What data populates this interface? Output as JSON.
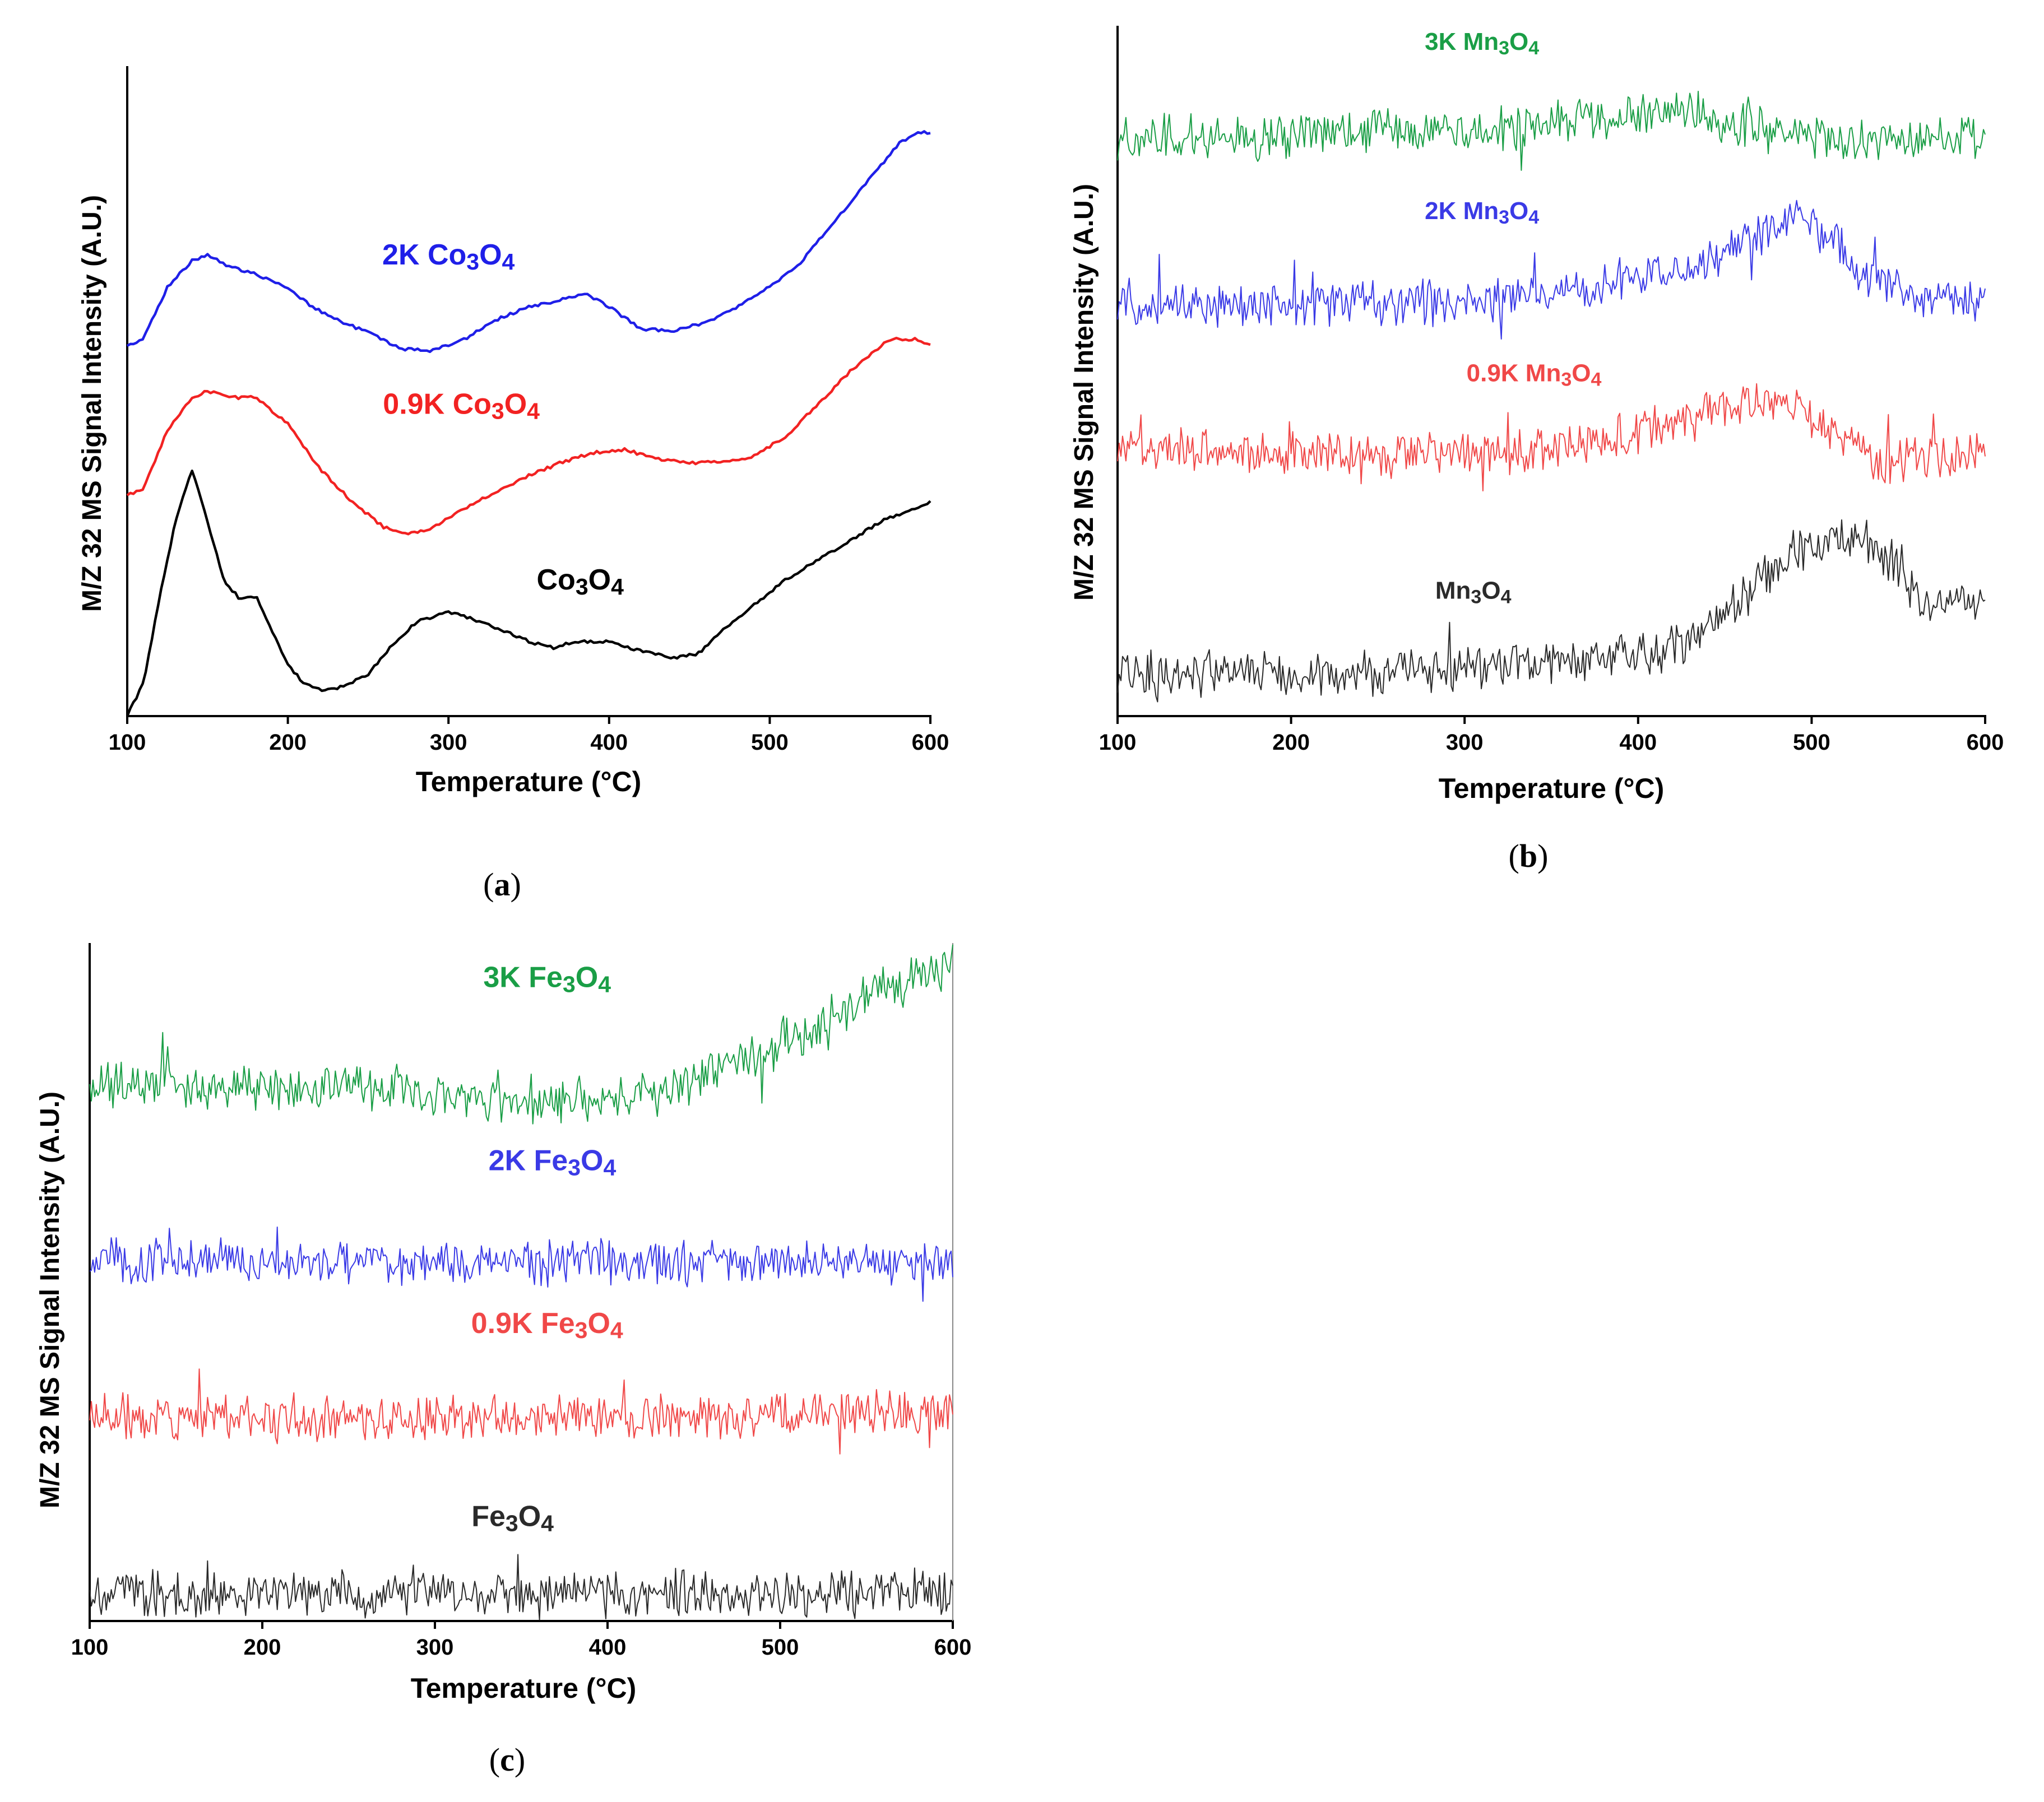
{
  "figure": {
    "panels": [
      {
        "id": "a",
        "caption_open": "(",
        "caption_letter": "a",
        "caption_close": ")"
      },
      {
        "id": "b",
        "caption_open": "(",
        "caption_letter": "b",
        "caption_close": ")"
      },
      {
        "id": "c",
        "caption_open": "(",
        "caption_letter": "c",
        "caption_close": ")"
      }
    ]
  },
  "chart_data": [
    {
      "panel": "a",
      "type": "line",
      "xlabel": "Temperature (°C)",
      "ylabel": "M/Z 32 MS Signal Intensity (A.U.)",
      "xlim": [
        100,
        600
      ],
      "ylim": [
        0,
        100
      ],
      "x_ticks": [
        "100",
        "200",
        "300",
        "400",
        "500",
        "600"
      ],
      "noise": 0,
      "series": [
        {
          "name": "2K Co3O4",
          "label_main": "2K Co",
          "sub1": "3",
          "label_mid": "O",
          "sub2": "4",
          "color": "#1f1fe8",
          "label_x": 300,
          "label_y": 69.5,
          "points": [
            [
              100,
              57
            ],
            [
              110,
              58
            ],
            [
              125,
              66
            ],
            [
              140,
              70
            ],
            [
              150,
              71
            ],
            [
              165,
              69
            ],
            [
              180,
              68
            ],
            [
              200,
              66
            ],
            [
              215,
              63
            ],
            [
              230,
              61
            ],
            [
              250,
              59
            ],
            [
              270,
              56.5
            ],
            [
              290,
              56.2
            ],
            [
              310,
              58
            ],
            [
              330,
              61
            ],
            [
              350,
              63
            ],
            [
              370,
              64
            ],
            [
              385,
              65
            ],
            [
              400,
              63
            ],
            [
              420,
              59.5
            ],
            [
              440,
              59.3
            ],
            [
              460,
              60.5
            ],
            [
              480,
              63
            ],
            [
              500,
              66
            ],
            [
              520,
              70
            ],
            [
              540,
              76
            ],
            [
              560,
              82
            ],
            [
              580,
              88
            ],
            [
              595,
              90
            ],
            [
              600,
              89.5
            ]
          ]
        },
        {
          "name": "0.9K Co3O4",
          "label_main": "0.9K Co",
          "sub1": "3",
          "label_mid": "O",
          "sub2": "4",
          "color": "#f22222",
          "label_x": 308,
          "label_y": 46.5,
          "points": [
            [
              100,
              34
            ],
            [
              110,
              35
            ],
            [
              125,
              44
            ],
            [
              140,
              49
            ],
            [
              150,
              50
            ],
            [
              165,
              49
            ],
            [
              180,
              49
            ],
            [
              200,
              45
            ],
            [
              220,
              38
            ],
            [
              240,
              33
            ],
            [
              260,
              29
            ],
            [
              275,
              28
            ],
            [
              290,
              29
            ],
            [
              310,
              32
            ],
            [
              330,
              34.5
            ],
            [
              350,
              37
            ],
            [
              370,
              39
            ],
            [
              390,
              40.5
            ],
            [
              410,
              41
            ],
            [
              430,
              39.5
            ],
            [
              450,
              39
            ],
            [
              470,
              39
            ],
            [
              490,
              40
            ],
            [
              510,
              43
            ],
            [
              530,
              48
            ],
            [
              550,
              53
            ],
            [
              575,
              58
            ],
            [
              590,
              58
            ],
            [
              600,
              57
            ]
          ]
        },
        {
          "name": "Co3O4",
          "label_main": "Co",
          "sub1": "3",
          "label_mid": "O",
          "sub2": "4",
          "color": "#000000",
          "label_x": 382,
          "label_y": 19.5,
          "points": [
            [
              100,
              0
            ],
            [
              110,
              5
            ],
            [
              120,
              18
            ],
            [
              130,
              30
            ],
            [
              140,
              38
            ],
            [
              150,
              30
            ],
            [
              160,
              21
            ],
            [
              170,
              18
            ],
            [
              180,
              18.5
            ],
            [
              190,
              13
            ],
            [
              200,
              8
            ],
            [
              210,
              5
            ],
            [
              220,
              4
            ],
            [
              235,
              4.5
            ],
            [
              250,
              6.5
            ],
            [
              265,
              11
            ],
            [
              280,
              14.5
            ],
            [
              300,
              16
            ],
            [
              315,
              15
            ],
            [
              330,
              13.5
            ],
            [
              350,
              11.5
            ],
            [
              365,
              10.5
            ],
            [
              380,
              11.5
            ],
            [
              400,
              11.5
            ],
            [
              420,
              10
            ],
            [
              440,
              9
            ],
            [
              455,
              9.5
            ],
            [
              470,
              13
            ],
            [
              490,
              17
            ],
            [
              510,
              21
            ],
            [
              530,
              24
            ],
            [
              550,
              27
            ],
            [
              570,
              30
            ],
            [
              590,
              32
            ],
            [
              600,
              33
            ]
          ]
        }
      ]
    },
    {
      "panel": "b",
      "type": "line",
      "xlabel": "Temperature (°C)",
      "ylabel": "M/Z 32 MS Signal Intensity (A.U.)",
      "xlim": [
        100,
        600
      ],
      "ylim": [
        0,
        100
      ],
      "x_ticks": [
        "100",
        "200",
        "300",
        "400",
        "500",
        "600"
      ],
      "noise": 2.5,
      "series": [
        {
          "name": "3K Mn3O4",
          "label_main": "3K Mn",
          "sub1": "3",
          "label_mid": "O",
          "sub2": "4",
          "color": "#1a9e46",
          "label_x": 310,
          "label_y": 96.5,
          "points": [
            [
              100,
              84
            ],
            [
              200,
              84
            ],
            [
              300,
              85
            ],
            [
              350,
              86
            ],
            [
              400,
              87
            ],
            [
              430,
              87.5
            ],
            [
              460,
              85.5
            ],
            [
              500,
              84
            ],
            [
              550,
              83
            ],
            [
              600,
              84
            ]
          ]
        },
        {
          "name": "2K Mn3O4",
          "label_main": "2K Mn",
          "sub1": "3",
          "label_mid": "O",
          "sub2": "4",
          "color": "#3a3ae6",
          "label_x": 310,
          "label_y": 72,
          "points": [
            [
              100,
              60
            ],
            [
              200,
              59.5
            ],
            [
              300,
              60
            ],
            [
              350,
              61
            ],
            [
              400,
              63.5
            ],
            [
              450,
              67
            ],
            [
              470,
              70
            ],
            [
              490,
              72
            ],
            [
              510,
              69
            ],
            [
              530,
              64
            ],
            [
              560,
              61
            ],
            [
              600,
              60
            ]
          ]
        },
        {
          "name": "0.9K Mn3O4",
          "label_main": "0.9K Mn",
          "sub1": "3",
          "label_mid": "O",
          "sub2": "4",
          "color": "#f04848",
          "label_x": 340,
          "label_y": 48.5,
          "points": [
            [
              100,
              38.5
            ],
            [
              200,
              38
            ],
            [
              300,
              38
            ],
            [
              350,
              39
            ],
            [
              400,
              41
            ],
            [
              450,
              45
            ],
            [
              475,
              46
            ],
            [
              500,
              43
            ],
            [
              520,
              40
            ],
            [
              540,
              36
            ],
            [
              560,
              37
            ],
            [
              600,
              39
            ]
          ]
        },
        {
          "name": "Mn3O4",
          "label_main": "Mn",
          "sub1": "3",
          "label_mid": "O",
          "sub2": "4",
          "color": "#2a2a2a",
          "label_x": 305,
          "label_y": 17,
          "points": [
            [
              100,
              6.5
            ],
            [
              200,
              6
            ],
            [
              300,
              7
            ],
            [
              400,
              8.5
            ],
            [
              430,
              11
            ],
            [
              460,
              17
            ],
            [
              490,
              24
            ],
            [
              510,
              25
            ],
            [
              530,
              26
            ],
            [
              545,
              22
            ],
            [
              560,
              17
            ],
            [
              600,
              16.5
            ]
          ]
        }
      ]
    },
    {
      "panel": "c",
      "type": "line",
      "xlabel": "Temperature (°C)",
      "ylabel": "M/Z 32 MS Signal Intensity (A.U.)",
      "xlim": [
        100,
        600
      ],
      "ylim": [
        0,
        100
      ],
      "x_ticks": [
        "100",
        "200",
        "300",
        "400",
        "500",
        "600"
      ],
      "noise": 2.6,
      "series": [
        {
          "name": "3K Fe3O4",
          "label_main": "3K Fe",
          "sub1": "3",
          "label_mid": "O",
          "sub2": "4",
          "color": "#1a9e46",
          "label_x": 365,
          "label_y": 93.5,
          "points": [
            [
              100,
              79
            ],
            [
              200,
              79
            ],
            [
              280,
              78.5
            ],
            [
              350,
              76.5
            ],
            [
              400,
              77
            ],
            [
              430,
              78
            ],
            [
              460,
              81
            ],
            [
              490,
              84
            ],
            [
              520,
              88
            ],
            [
              550,
              92
            ],
            [
              580,
              95
            ],
            [
              600,
              96
            ]
          ]
        },
        {
          "name": "2K Fe3O4",
          "label_main": "2K Fe",
          "sub1": "3",
          "label_mid": "O",
          "sub2": "4",
          "color": "#3a3ae6",
          "label_x": 368,
          "label_y": 66.5,
          "points": [
            [
              100,
              53
            ],
            [
              200,
              53
            ],
            [
              300,
              53
            ],
            [
              400,
              53
            ],
            [
              500,
              53
            ],
            [
              600,
              53
            ]
          ]
        },
        {
          "name": "0.9K Fe3O4",
          "label_main": "0.9K Fe",
          "sub1": "3",
          "label_mid": "O",
          "sub2": "4",
          "color": "#f04848",
          "label_x": 365,
          "label_y": 42.5,
          "points": [
            [
              100,
              30
            ],
            [
              200,
              30
            ],
            [
              300,
              30
            ],
            [
              400,
              30
            ],
            [
              500,
              30.5
            ],
            [
              600,
              31
            ]
          ]
        },
        {
          "name": "Fe3O4",
          "label_main": "Fe",
          "sub1": "3",
          "label_mid": "O",
          "sub2": "4",
          "color": "#2a2a2a",
          "label_x": 345,
          "label_y": 14,
          "points": [
            [
              100,
              4
            ],
            [
              200,
              4
            ],
            [
              300,
              4
            ],
            [
              400,
              4
            ],
            [
              500,
              4
            ],
            [
              600,
              4
            ]
          ]
        }
      ]
    }
  ]
}
